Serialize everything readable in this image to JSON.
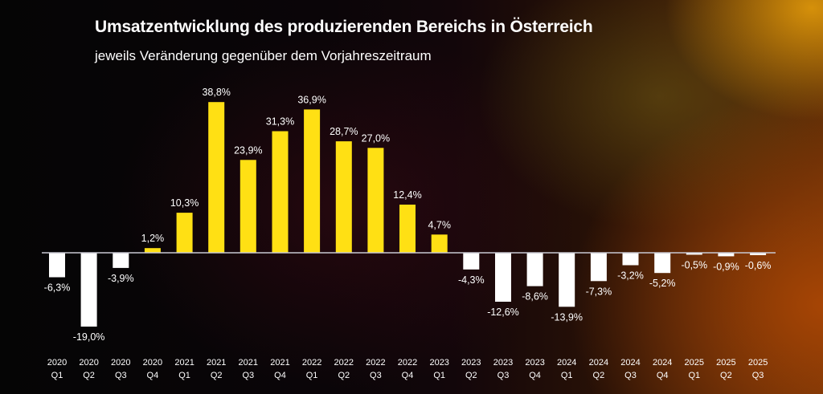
{
  "chart_data": {
    "type": "bar",
    "title": "Umsatzentwicklung des produzierenden Bereichs in Österreich",
    "subtitle": "jeweils Veränderung gegenüber dem Vorjahreszeitraum",
    "xlabel": "",
    "ylabel": "",
    "unit": "%",
    "grid": false,
    "legend": "none",
    "colors": {
      "positive": "#FFE014",
      "negative": "#FFFFFF",
      "baseline": "#C8C8D2",
      "text": "#FFFFFF"
    },
    "categories": [
      {
        "year": "2020",
        "quarter": "Q1"
      },
      {
        "year": "2020",
        "quarter": "Q2"
      },
      {
        "year": "2020",
        "quarter": "Q3"
      },
      {
        "year": "2020",
        "quarter": "Q4"
      },
      {
        "year": "2021",
        "quarter": "Q1"
      },
      {
        "year": "2021",
        "quarter": "Q2"
      },
      {
        "year": "2021",
        "quarter": "Q3"
      },
      {
        "year": "2021",
        "quarter": "Q4"
      },
      {
        "year": "2022",
        "quarter": "Q1"
      },
      {
        "year": "2022",
        "quarter": "Q2"
      },
      {
        "year": "2022",
        "quarter": "Q3"
      },
      {
        "year": "2022",
        "quarter": "Q4"
      },
      {
        "year": "2023",
        "quarter": "Q1"
      },
      {
        "year": "2023",
        "quarter": "Q2"
      },
      {
        "year": "2023",
        "quarter": "Q3"
      },
      {
        "year": "2023",
        "quarter": "Q4"
      },
      {
        "year": "2024",
        "quarter": "Q1"
      },
      {
        "year": "2024",
        "quarter": "Q2"
      },
      {
        "year": "2024",
        "quarter": "Q3"
      },
      {
        "year": "2024",
        "quarter": "Q4"
      },
      {
        "year": "2025",
        "quarter": "Q1"
      },
      {
        "year": "2025",
        "quarter": "Q2"
      },
      {
        "year": "2025",
        "quarter": "Q3"
      }
    ],
    "values": [
      -6.3,
      -19.0,
      -3.9,
      1.2,
      10.3,
      38.8,
      23.9,
      31.3,
      36.9,
      28.7,
      27.0,
      12.4,
      4.7,
      -4.3,
      -12.6,
      -8.6,
      -13.9,
      -7.3,
      -3.2,
      -5.2,
      -0.5,
      -0.9,
      -0.6
    ],
    "data_labels": [
      "-6,3%",
      "-19,0%",
      "-3,9%",
      "1,2%",
      "10,3%",
      "38,8%",
      "23,9%",
      "31,3%",
      "36,9%",
      "28,7%",
      "27,0%",
      "12,4%",
      "4,7%",
      "-4,3%",
      "-12,6%",
      "-8,6%",
      "-13,9%",
      "-7,3%",
      "-3,2%",
      "-5,2%",
      "-0,5%",
      "-0,9%",
      "-0,6%"
    ],
    "ylim": [
      -25,
      45
    ]
  }
}
